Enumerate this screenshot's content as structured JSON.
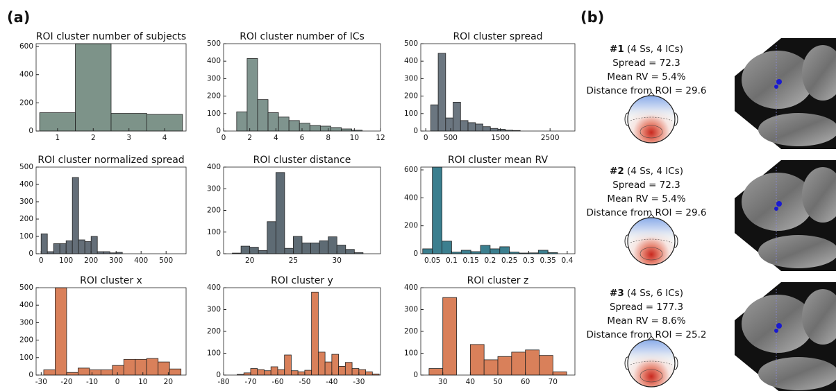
{
  "panel_labels": [
    "(a)",
    "(b)"
  ],
  "chart_data": [
    {
      "type": "histogram",
      "title": "ROI cluster number of subjects",
      "color": "#7d9389",
      "bins": [
        0.5,
        1.5,
        2.5,
        3.5,
        4.5
      ],
      "values": [
        130,
        620,
        125,
        118
      ],
      "xlim": [
        0.4,
        4.6
      ],
      "ylim": [
        0,
        620
      ],
      "xticks": [
        1,
        2,
        3,
        4
      ],
      "yticks": [
        0,
        200,
        400,
        600
      ]
    },
    {
      "type": "histogram",
      "title": "ROI cluster number of ICs",
      "color": "#7f948e",
      "bins": [
        1,
        1.8,
        2.6,
        3.4,
        4.2,
        5,
        5.8,
        6.6,
        7.4,
        8.2,
        9,
        9.8,
        10.6
      ],
      "values": [
        110,
        415,
        180,
        105,
        80,
        60,
        45,
        32,
        28,
        20,
        12,
        5
      ],
      "xlim": [
        0,
        12
      ],
      "ylim": [
        0,
        500
      ],
      "xticks": [
        0,
        2,
        4,
        6,
        8,
        10,
        12
      ],
      "yticks": [
        0,
        100,
        200,
        300,
        400,
        500
      ]
    },
    {
      "type": "histogram",
      "title": "ROI cluster spread",
      "color": "#6b7680",
      "bins": [
        100,
        250,
        400,
        550,
        700,
        850,
        1000,
        1150,
        1300,
        1450,
        1600,
        1750,
        1900
      ],
      "values": [
        150,
        445,
        75,
        165,
        60,
        48,
        40,
        25,
        15,
        10,
        5,
        3
      ],
      "xlim": [
        -100,
        3000
      ],
      "ylim": [
        0,
        500
      ],
      "xticks": [
        0,
        500,
        1500,
        2500
      ],
      "yticks": [
        0,
        100,
        200,
        300,
        400,
        500
      ]
    },
    {
      "type": "histogram",
      "title": "ROI cluster normalized spread",
      "color": "#646e78",
      "bins": [
        0,
        25,
        50,
        75,
        100,
        125,
        150,
        175,
        200,
        225,
        250,
        275,
        300,
        325
      ],
      "values": [
        115,
        12,
        58,
        58,
        75,
        440,
        80,
        70,
        100,
        12,
        12,
        5,
        8
      ],
      "xlim": [
        -20,
        580
      ],
      "ylim": [
        0,
        500
      ],
      "xticks": [
        0,
        100,
        200,
        300,
        400,
        500
      ],
      "yticks": [
        0,
        100,
        200,
        300,
        400,
        500
      ]
    },
    {
      "type": "histogram",
      "title": "ROI cluster distance",
      "color": "#5e6b74",
      "bins": [
        18,
        19,
        20,
        21,
        22,
        23,
        24,
        25,
        26,
        27,
        28,
        29,
        30,
        31,
        32,
        33
      ],
      "values": [
        3,
        35,
        30,
        15,
        148,
        375,
        25,
        80,
        50,
        50,
        60,
        78,
        40,
        20,
        5
      ],
      "xlim": [
        17,
        35
      ],
      "ylim": [
        0,
        400
      ],
      "xticks": [
        20,
        25,
        30
      ],
      "yticks": [
        0,
        100,
        200,
        300,
        400
      ]
    },
    {
      "type": "histogram",
      "title": "ROI cluster mean RV",
      "color": "#3b7f8f",
      "bins": [
        0.025,
        0.05,
        0.075,
        0.1,
        0.125,
        0.15,
        0.175,
        0.2,
        0.225,
        0.25,
        0.275,
        0.3,
        0.325,
        0.35,
        0.375,
        0.4
      ],
      "values": [
        35,
        620,
        90,
        12,
        25,
        15,
        60,
        35,
        50,
        12,
        5,
        6,
        25,
        8,
        0
      ],
      "xlim": [
        0.02,
        0.42
      ],
      "ylim": [
        0,
        620
      ],
      "xticks": [
        0.05,
        0.1,
        0.15,
        0.2,
        0.25,
        0.3,
        0.35,
        0.4
      ],
      "yticks": [
        0,
        200,
        400,
        600
      ]
    },
    {
      "type": "histogram",
      "title": "ROI cluster x",
      "color": "#d9805a",
      "bins": [
        -29,
        -24.5,
        -20,
        -15.5,
        -11,
        -6.5,
        -2,
        2.5,
        7,
        11.5,
        16,
        20.5,
        25
      ],
      "values": [
        30,
        500,
        15,
        40,
        30,
        30,
        55,
        90,
        90,
        95,
        75,
        35
      ],
      "xlim": [
        -32,
        27
      ],
      "ylim": [
        0,
        500
      ],
      "xticks": [
        -30,
        -20,
        -10,
        0,
        10,
        20
      ],
      "yticks": [
        0,
        100,
        200,
        300,
        400,
        500
      ]
    },
    {
      "type": "histogram",
      "title": "ROI cluster y",
      "color": "#d9805a",
      "bins": [
        -75,
        -72.5,
        -70,
        -67.5,
        -65,
        -62.5,
        -60,
        -57.5,
        -55,
        -52.5,
        -50,
        -47.5,
        -45,
        -42.5,
        -40,
        -37.5,
        -35,
        -32.5,
        -30,
        -27.5,
        -25,
        -22.5
      ],
      "values": [
        3,
        10,
        30,
        25,
        20,
        38,
        25,
        92,
        20,
        15,
        22,
        380,
        105,
        60,
        95,
        40,
        58,
        30,
        25,
        15,
        5
      ],
      "xlim": [
        -80,
        -22
      ],
      "ylim": [
        0,
        400
      ],
      "xticks": [
        -80,
        -70,
        -60,
        -50,
        -40,
        -30
      ],
      "yticks": [
        0,
        100,
        200,
        300,
        400
      ]
    },
    {
      "type": "histogram",
      "title": "ROI cluster z",
      "color": "#d9805a",
      "bins": [
        25,
        30,
        35,
        40,
        45,
        50,
        55,
        60,
        65,
        70,
        75
      ],
      "values": [
        30,
        355,
        0,
        140,
        70,
        85,
        105,
        115,
        90,
        15
      ],
      "xlim": [
        22,
        78
      ],
      "ylim": [
        0,
        400
      ],
      "xticks": [
        30,
        40,
        50,
        60,
        70
      ],
      "yticks": [
        0,
        100,
        200,
        300,
        400
      ]
    }
  ],
  "clusters": [
    {
      "id": "#1",
      "info": "(4 Ss, 4 ICs)",
      "lines": [
        "Spread = 72.3",
        "Mean RV = 5.4%",
        "Distance from ROI = 29.6"
      ]
    },
    {
      "id": "#2",
      "info": "(4 Ss, 4 ICs)",
      "lines": [
        "Spread = 72.3",
        "Mean RV = 5.4%",
        "Distance from ROI = 29.6"
      ]
    },
    {
      "id": "#3",
      "info": "(4 Ss, 6 ICs)",
      "lines": [
        "Spread = 177.3",
        "Mean RV = 8.6%",
        "Distance from ROI = 25.2"
      ]
    }
  ]
}
